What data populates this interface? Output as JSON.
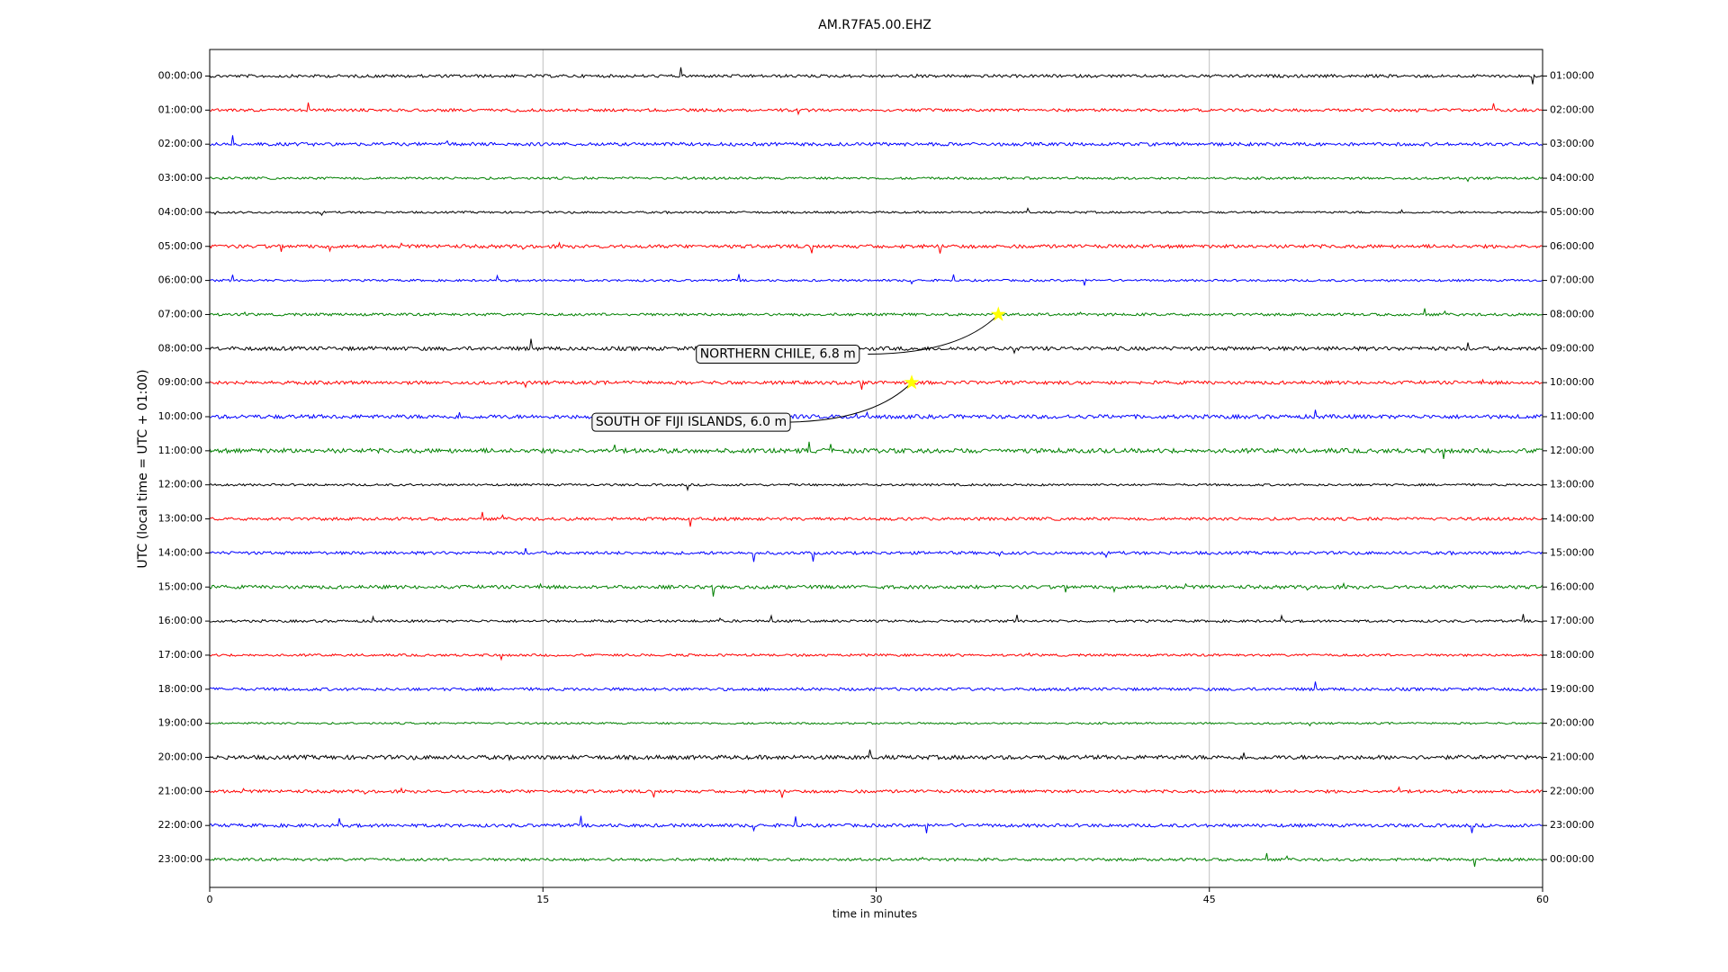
{
  "chart_data": {
    "type": "helicorder",
    "title": "AM.R7FA5.00.EHZ",
    "xlabel": "time in minutes",
    "ylabel": "UTC (local time = UTC + 01:00)",
    "xlim": [
      0,
      60
    ],
    "xticks": [
      0,
      15,
      30,
      45,
      60
    ],
    "grid": true,
    "colors": [
      "#000000",
      "#ff0000",
      "#0000ff",
      "#008000"
    ],
    "rows": [
      "00:00:00",
      "01:00:00",
      "02:00:00",
      "03:00:00",
      "04:00:00",
      "05:00:00",
      "06:00:00",
      "07:00:00",
      "08:00:00",
      "09:00:00",
      "10:00:00",
      "11:00:00",
      "12:00:00",
      "13:00:00",
      "14:00:00",
      "15:00:00",
      "16:00:00",
      "17:00:00",
      "18:00:00",
      "19:00:00",
      "20:00:00",
      "21:00:00",
      "22:00:00",
      "23:00:00"
    ],
    "right_labels": [
      "01:00:00",
      "02:00:00",
      "03:00:00",
      "04:00:00",
      "05:00:00",
      "06:00:00",
      "07:00:00",
      "08:00:00",
      "09:00:00",
      "10:00:00",
      "11:00:00",
      "12:00:00",
      "13:00:00",
      "14:00:00",
      "15:00:00",
      "16:00:00",
      "17:00:00",
      "18:00:00",
      "19:00:00",
      "20:00:00",
      "21:00:00",
      "22:00:00",
      "23:00:00",
      "00:00:00"
    ],
    "events": [
      {
        "label": "NORTHERN CHILE, 6.8 m",
        "row": "07:00:00",
        "minute": 35.5,
        "color": "#ffff00"
      },
      {
        "label": "SOUTH OF FIJI ISLANDS, 6.0 m",
        "row": "09:00:00",
        "minute": 31.6,
        "color": "#ffff00"
      }
    ]
  }
}
